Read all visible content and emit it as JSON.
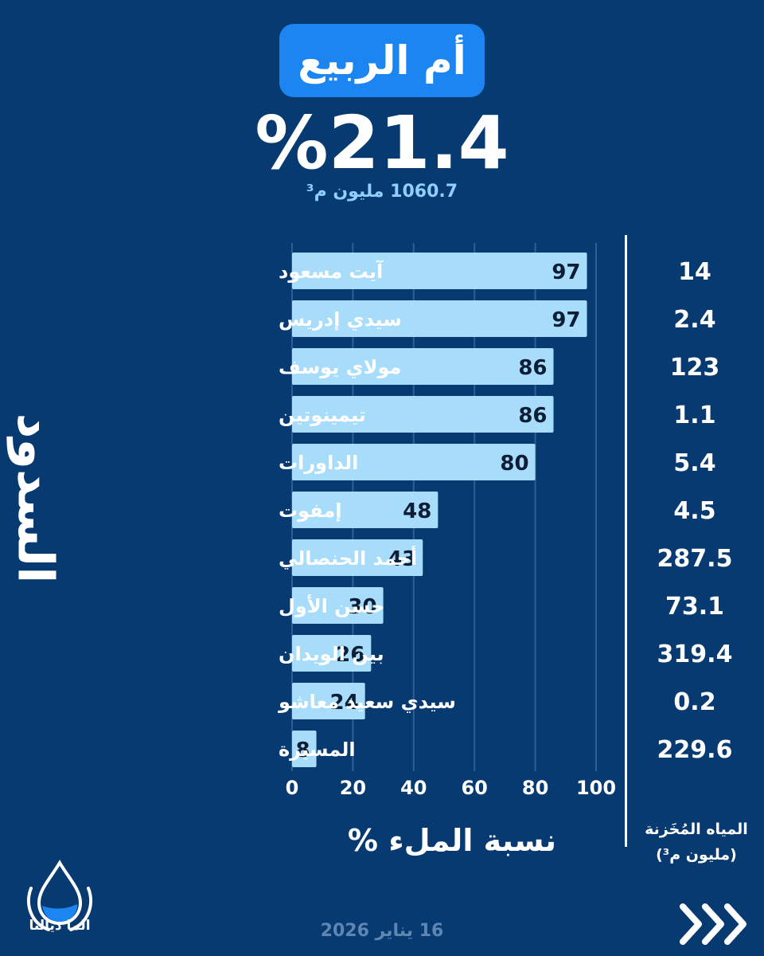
{
  "header": {
    "basin_name": "أم الربيع",
    "fill_rate": "%21.4",
    "stored_volume": "1060.7 مليون م³"
  },
  "side_label": "السدود",
  "stored_column_title": "المياه المُخَزنة (مليون م³)",
  "date": "16 يناير 2026",
  "logo_text": "الما ديالنا",
  "colors": {
    "background": "#083a72",
    "bar_fill": "#a8dcfb",
    "title_pill": "#1b86f2",
    "volume_text": "#8fd0ff",
    "date_text": "#5e86b3"
  },
  "icons": {
    "logo": "water-drop-hands-icon",
    "next": "triple-chevron-right-icon"
  },
  "chart_data": {
    "type": "bar",
    "orientation": "horizontal",
    "categories": [
      "آيت مسعود",
      "سيدي إدريس",
      "مولاي يوسف",
      "تيمينوتين",
      "الداورات",
      "إمفوت",
      "أحمد الحنصالي",
      "حسن الأول",
      "بين الويدان",
      "سيدي سعيد معاشو",
      "المسيرة"
    ],
    "values": [
      97,
      97,
      86,
      86,
      80,
      48,
      43,
      30,
      26,
      24,
      8
    ],
    "stored_million_m3": [
      "14",
      "2.4",
      "123",
      "1.1",
      "5.4",
      "4.5",
      "287.5",
      "73.1",
      "319.4",
      "0.2",
      "229.6"
    ],
    "xlabel": "نسبة الملء %",
    "xlim": [
      0,
      100
    ],
    "xticks": [
      0,
      20,
      40,
      60,
      80,
      100
    ],
    "grid": true
  }
}
